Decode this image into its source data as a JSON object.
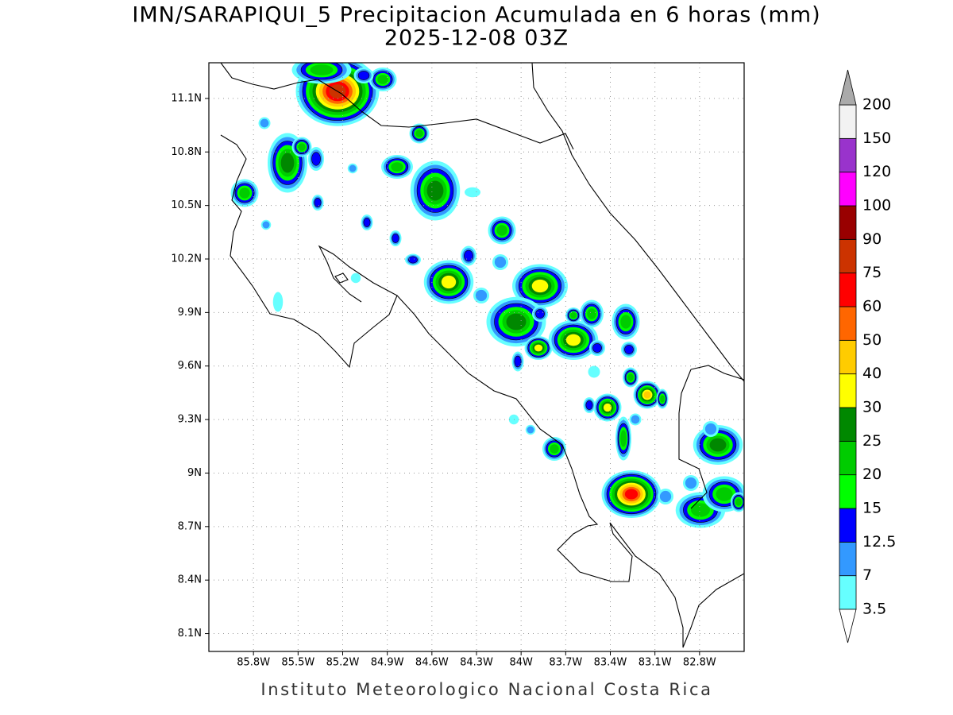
{
  "title": "IMN/SARAPIQUI_5 Precipitacion Acumulada en 6 horas (mm)",
  "subtitle": "2025-12-08 03Z",
  "footer": "Instituto Meteorologico Nacional Costa Rica",
  "map": {
    "xlim": [
      -86.1,
      -82.5
    ],
    "ylim": [
      8.0,
      11.3
    ],
    "xticks": [
      {
        "value": -85.8,
        "label": "85.8W"
      },
      {
        "value": -85.5,
        "label": "85.5W"
      },
      {
        "value": -85.2,
        "label": "85.2W"
      },
      {
        "value": -84.9,
        "label": "84.9W"
      },
      {
        "value": -84.6,
        "label": "84.6W"
      },
      {
        "value": -84.3,
        "label": "84.3W"
      },
      {
        "value": -84.0,
        "label": "84W"
      },
      {
        "value": -83.7,
        "label": "83.7W"
      },
      {
        "value": -83.4,
        "label": "83.4W"
      },
      {
        "value": -83.1,
        "label": "83.1W"
      },
      {
        "value": -82.8,
        "label": "82.8W"
      }
    ],
    "yticks": [
      {
        "value": 8.1,
        "label": "8.1N"
      },
      {
        "value": 8.4,
        "label": "8.4N"
      },
      {
        "value": 8.7,
        "label": "8.7N"
      },
      {
        "value": 9.0,
        "label": "9N"
      },
      {
        "value": 9.3,
        "label": "9.3N"
      },
      {
        "value": 9.6,
        "label": "9.6N"
      },
      {
        "value": 9.9,
        "label": "9.9N"
      },
      {
        "value": 10.2,
        "label": "10.2N"
      },
      {
        "value": 10.5,
        "label": "10.5N"
      },
      {
        "value": 10.8,
        "label": "10.8N"
      },
      {
        "value": 11.1,
        "label": "11.1N"
      }
    ],
    "grid": true
  },
  "colorbar": {
    "levels": [
      3.5,
      7,
      12.5,
      15,
      20,
      25,
      30,
      40,
      50,
      60,
      75,
      90,
      100,
      120,
      150,
      200
    ],
    "colors": [
      "#66ffff",
      "#3399ff",
      "#0000ff",
      "#00ff00",
      "#00cc00",
      "#008800",
      "#ffff00",
      "#ffcc00",
      "#ff6600",
      "#ff0000",
      "#cc3300",
      "#990000",
      "#ff00ff",
      "#9933cc",
      "#f2f2f2"
    ],
    "under_color": "#ffffff",
    "over_color": "#aaaaaa"
  }
}
